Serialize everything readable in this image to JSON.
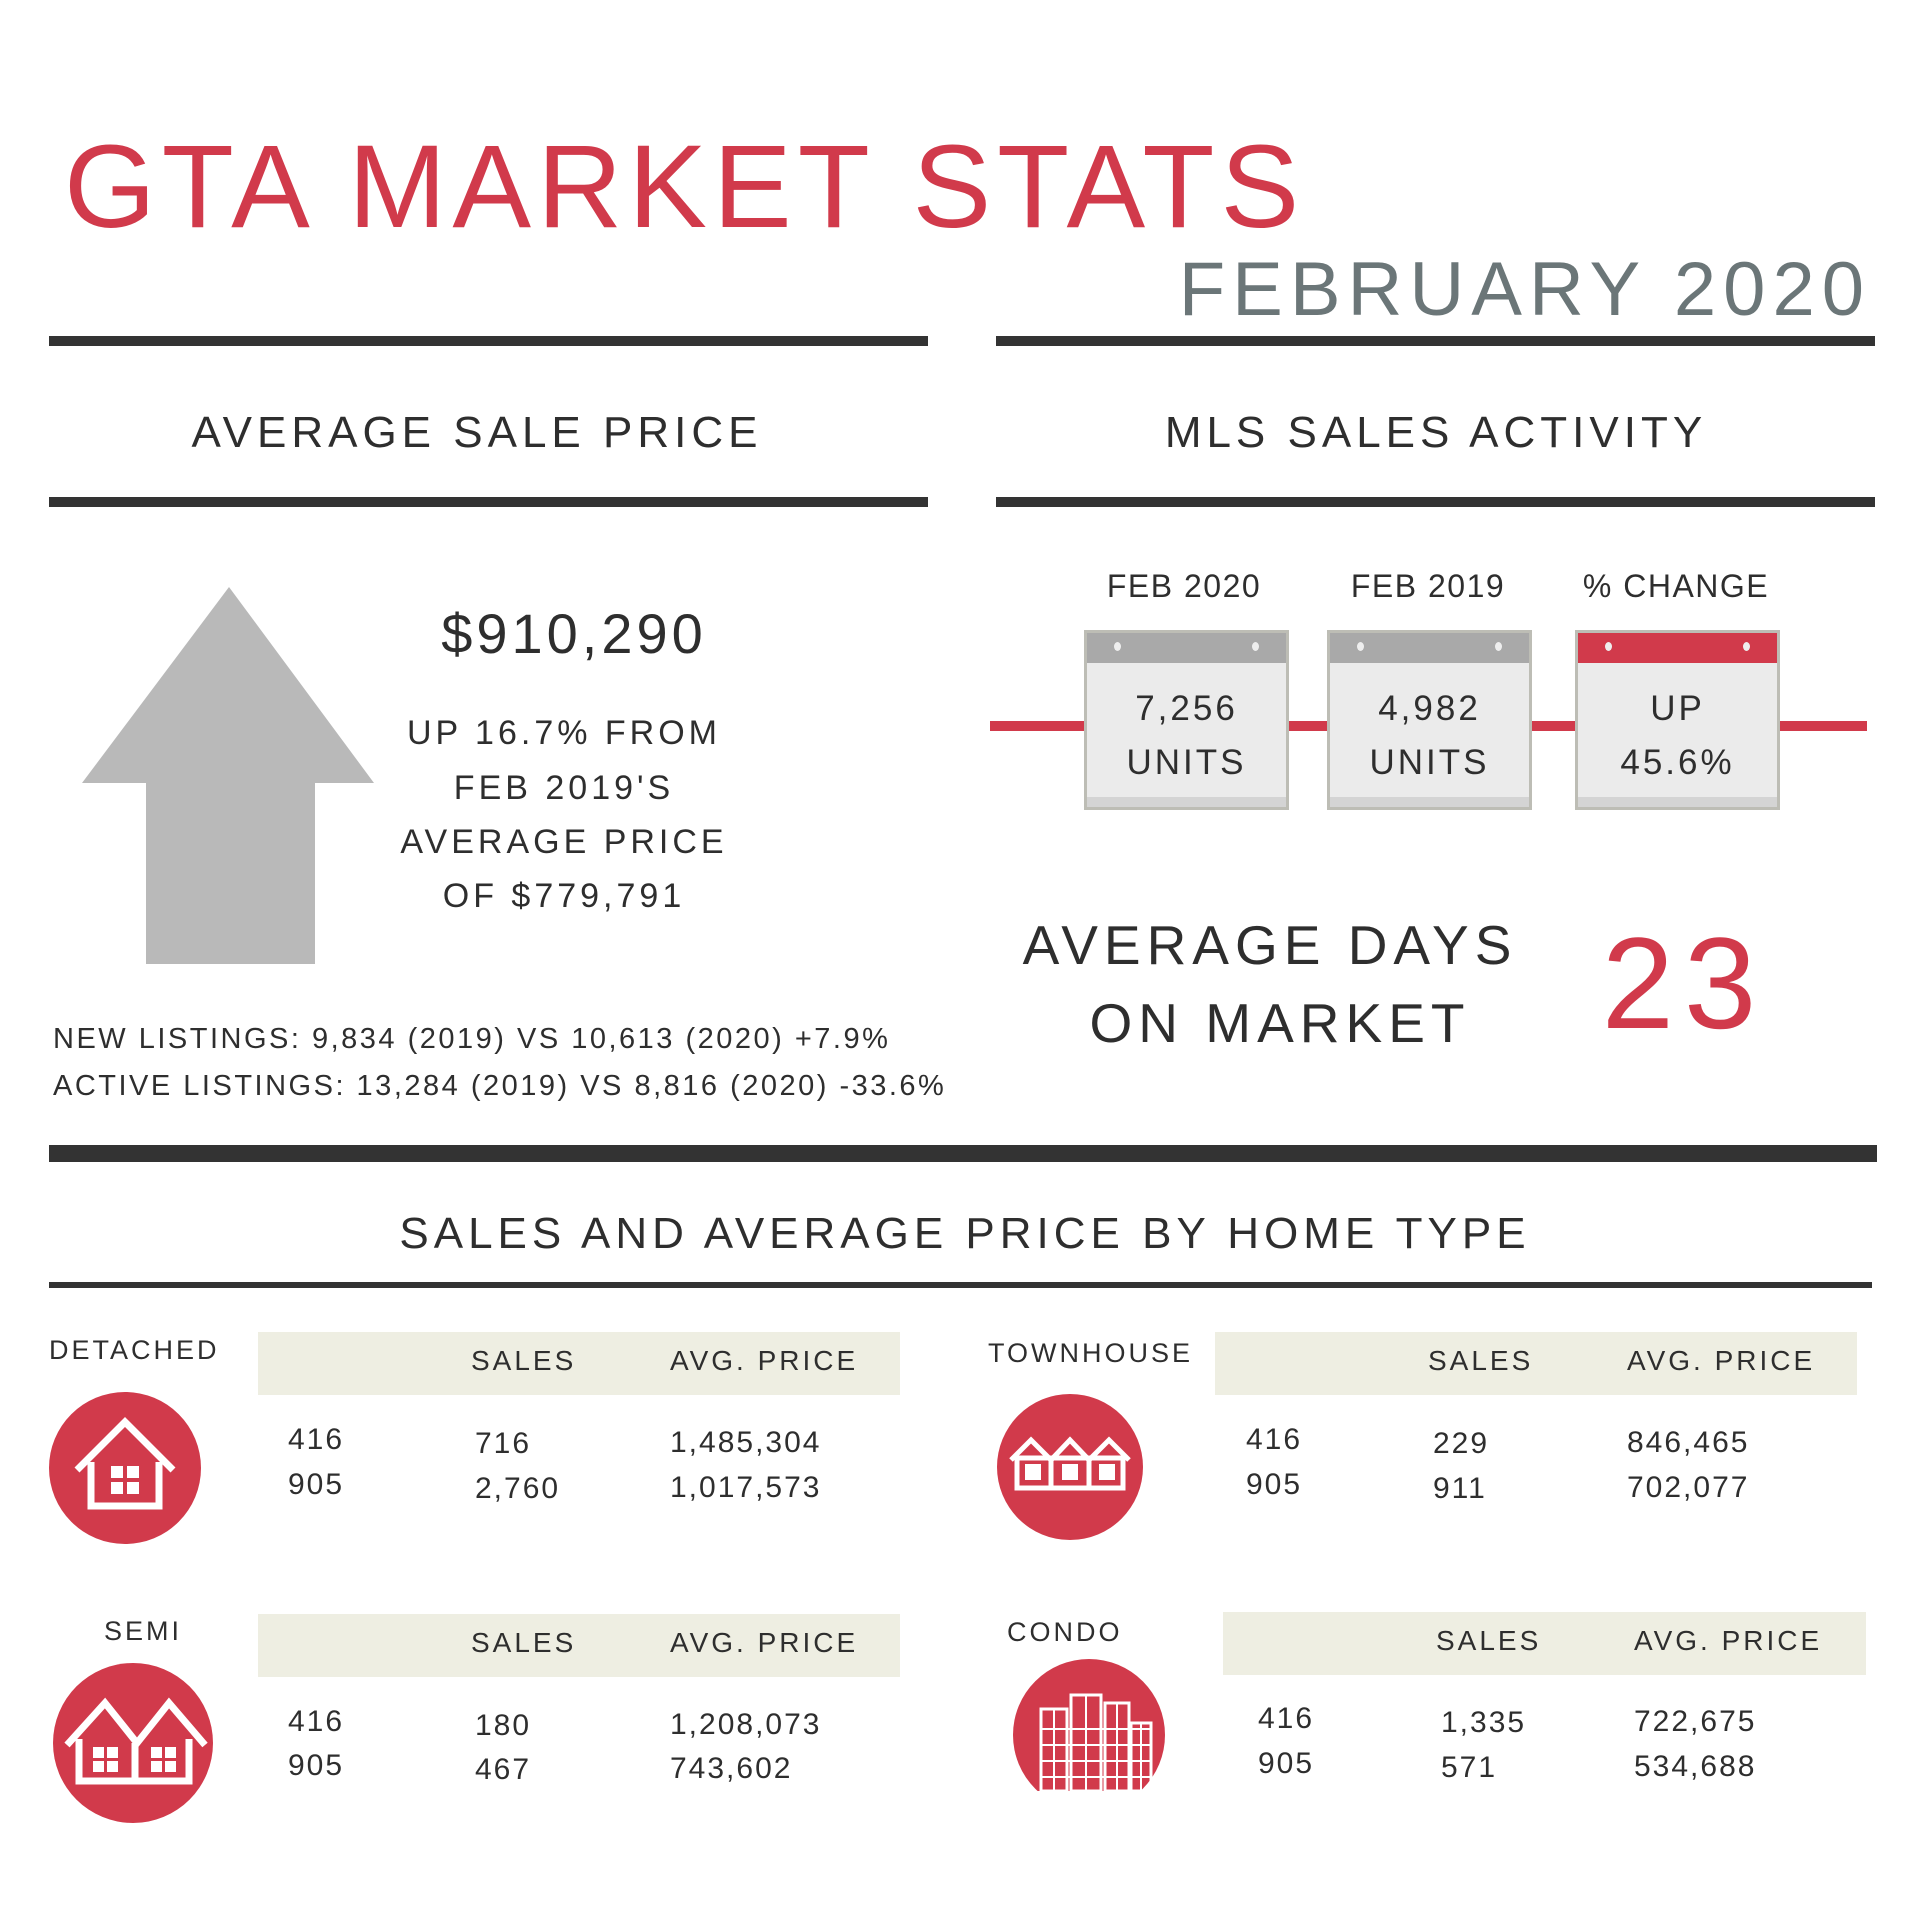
{
  "header": {
    "title": "GTA MARKET STATS",
    "month": "FEBRUARY 2020"
  },
  "avg_sale_price": {
    "heading": "AVERAGE SALE PRICE",
    "price": "$910,290",
    "lines": [
      "UP 16.7% FROM",
      "FEB 2019'S",
      "AVERAGE PRICE",
      "OF $779,791"
    ],
    "icon": "up-arrow-icon",
    "listings": [
      "NEW LISTINGS: 9,834 (2019) VS 10,613 (2020) +7.9%",
      "ACTIVE LISTINGS: 13,284 (2019) VS 8,816 (2020) -33.6%"
    ]
  },
  "mls": {
    "heading": "MLS SALES ACTIVITY",
    "columns": [
      {
        "label": "FEB 2020",
        "line1": "7,256",
        "line2": "UNITS"
      },
      {
        "label": "FEB 2019",
        "line1": "4,982",
        "line2": "UNITS"
      },
      {
        "label": "% CHANGE",
        "line1": "UP",
        "line2": "45.6%"
      }
    ],
    "days_label_1": "AVERAGE DAYS",
    "days_label_2": "ON MARKET",
    "days_value": "23"
  },
  "home_types": {
    "heading": "SALES AND AVERAGE PRICE BY HOME TYPE",
    "col_sales": "SALES",
    "col_price": "AVG. PRICE",
    "types": [
      {
        "name": "DETACHED",
        "icon": "detached-house-icon",
        "rows": [
          {
            "area": "416",
            "sales": "716",
            "price": "1,485,304"
          },
          {
            "area": "905",
            "sales": "2,760",
            "price": "1,017,573"
          }
        ]
      },
      {
        "name": "TOWNHOUSE",
        "icon": "townhouse-icon",
        "rows": [
          {
            "area": "416",
            "sales": "229",
            "price": "846,465"
          },
          {
            "area": "905",
            "sales": "911",
            "price": "702,077"
          }
        ]
      },
      {
        "name": "SEMI",
        "icon": "semi-house-icon",
        "rows": [
          {
            "area": "416",
            "sales": "180",
            "price": "1,208,073"
          },
          {
            "area": "905",
            "sales": "467",
            "price": "743,602"
          }
        ]
      },
      {
        "name": "CONDO",
        "icon": "condo-building-icon",
        "rows": [
          {
            "area": "416",
            "sales": "1,335",
            "price": "722,675"
          },
          {
            "area": "905",
            "sales": "571",
            "price": "534,688"
          }
        ]
      }
    ]
  },
  "colors": {
    "accent": "#d13a4b",
    "subtitle": "#6b7678",
    "arrow": "#b9b9b9",
    "band": "#eeeee2"
  }
}
